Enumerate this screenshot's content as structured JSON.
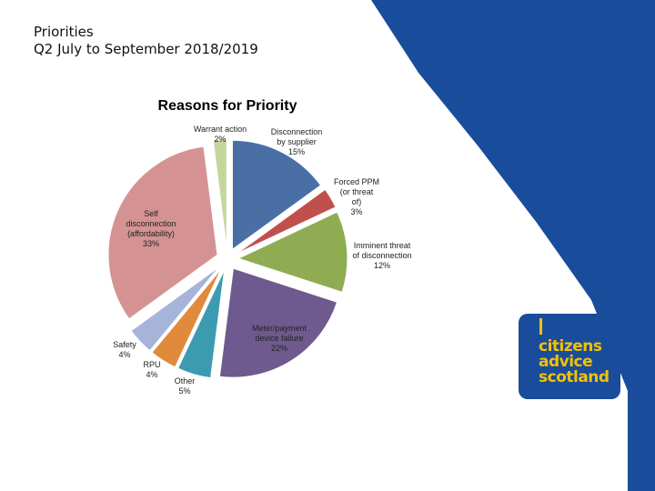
{
  "slide": {
    "title_line1": "Priorities",
    "title_line2": "Q2 July to September 2018/2019"
  },
  "logo": {
    "line1": "citizens",
    "line2": "advice",
    "line3": "scotland",
    "bg_color": "#1a4c9c",
    "text_color": "#f2c200"
  },
  "chart_data": {
    "type": "pie",
    "title": "Reasons for Priority",
    "slices": [
      {
        "label": "Disconnection by supplier",
        "pct_label": "15%",
        "value": 15,
        "color": "#4a6fa5"
      },
      {
        "label": "Forced PPM (or threat of)",
        "pct_label": "3%",
        "value": 3,
        "color": "#c0504d"
      },
      {
        "label": "Imminent threat of disconnection",
        "pct_label": "12%",
        "value": 12,
        "color": "#8fac53"
      },
      {
        "label": "Meter/payment device failure",
        "pct_label": "22%",
        "value": 22,
        "color": "#6e5a8e"
      },
      {
        "label": "Other",
        "pct_label": "5%",
        "value": 5,
        "color": "#3d9bb0"
      },
      {
        "label": "RPU",
        "pct_label": "4%",
        "value": 4,
        "color": "#e08a3c"
      },
      {
        "label": "Safety",
        "pct_label": "4%",
        "value": 4,
        "color": "#a5b4d8"
      },
      {
        "label": "Self disconnection (affordability)",
        "pct_label": "33%",
        "value": 33,
        "color": "#d49392"
      },
      {
        "label": "Warrant action",
        "pct_label": "2%",
        "value": 2,
        "color": "#c3d69b"
      }
    ]
  }
}
